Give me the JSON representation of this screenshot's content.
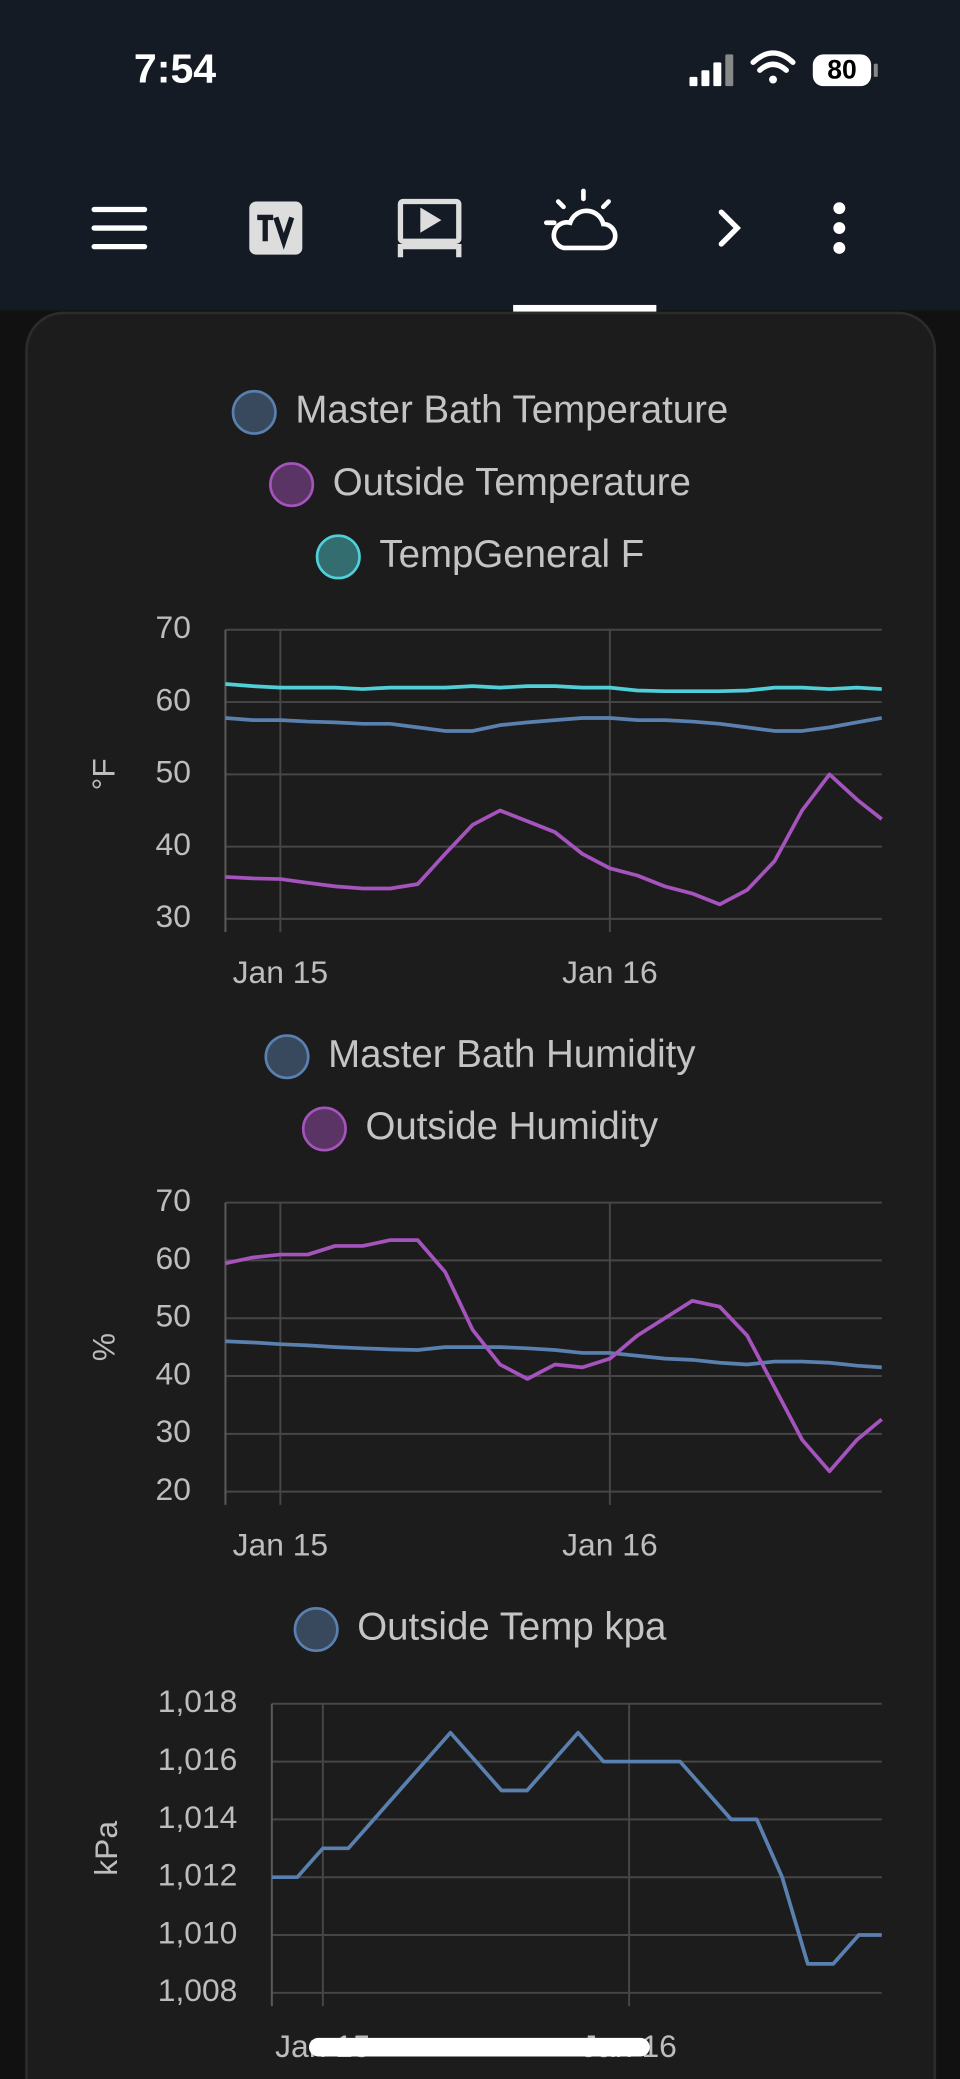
{
  "status_bar": {
    "time": "7:54",
    "battery": "80"
  },
  "chart_data": [
    {
      "type": "line",
      "y_label": "°F",
      "grid": true,
      "x": [
        -4,
        -2,
        0,
        2,
        4,
        6,
        8,
        10,
        12,
        14,
        16,
        18,
        20,
        22,
        24,
        26,
        28,
        30,
        32,
        34,
        36,
        38,
        40,
        42,
        43.8
      ],
      "xlim": [
        -4,
        43.8
      ],
      "xticks": [
        {
          "value": 0,
          "label": "Jan 15"
        },
        {
          "value": 24,
          "label": "Jan 16"
        }
      ],
      "ylim": [
        30,
        70
      ],
      "yticks": [
        30,
        40,
        50,
        60,
        70
      ],
      "series": [
        {
          "name": "Master Bath Temperature",
          "color": "#5a80b0",
          "values": [
            57.8,
            57.5,
            57.5,
            57.3,
            57.2,
            57,
            57,
            56.5,
            56,
            56,
            56.8,
            57.2,
            57.5,
            57.8,
            57.8,
            57.5,
            57.5,
            57.3,
            57,
            56.5,
            56,
            56,
            56.5,
            57.2,
            57.8
          ]
        },
        {
          "name": "Outside Temperature",
          "color": "#a553bd",
          "values": [
            35.8,
            35.6,
            35.5,
            35,
            34.5,
            34.2,
            34.2,
            34.8,
            39,
            43,
            45,
            43.5,
            42,
            39,
            37,
            36,
            34.5,
            33.5,
            32,
            34,
            38,
            45,
            50,
            46.5,
            43.8
          ]
        },
        {
          "name": "TempGeneral F",
          "color": "#4fd0d8",
          "values": [
            62.5,
            62.2,
            62,
            62,
            62,
            61.8,
            62,
            62,
            62,
            62.2,
            62,
            62.2,
            62.2,
            62,
            62,
            61.6,
            61.5,
            61.5,
            61.5,
            61.6,
            62,
            62,
            61.8,
            62,
            61.8
          ]
        }
      ]
    },
    {
      "type": "line",
      "y_label": "%",
      "grid": true,
      "x": [
        -4,
        -2,
        0,
        2,
        4,
        6,
        8,
        10,
        12,
        14,
        16,
        18,
        20,
        22,
        24,
        26,
        28,
        30,
        32,
        34,
        36,
        38,
        40,
        42,
        43.8
      ],
      "xlim": [
        -4,
        43.8
      ],
      "xticks": [
        {
          "value": 0,
          "label": "Jan 15"
        },
        {
          "value": 24,
          "label": "Jan 16"
        }
      ],
      "ylim": [
        20,
        70
      ],
      "yticks": [
        20,
        30,
        40,
        50,
        60,
        70
      ],
      "series": [
        {
          "name": "Master Bath Humidity",
          "color": "#5a80b0",
          "values": [
            46,
            45.8,
            45.5,
            45.3,
            45,
            44.8,
            44.6,
            44.5,
            45,
            45,
            45,
            44.8,
            44.5,
            44,
            44,
            43.5,
            43,
            42.8,
            42.3,
            42,
            42.5,
            42.5,
            42.3,
            41.8,
            41.5
          ]
        },
        {
          "name": "Outside Humidity",
          "color": "#a553bd",
          "values": [
            59.5,
            60.5,
            61,
            61,
            62.5,
            62.5,
            63.5,
            63.5,
            58,
            48,
            42,
            39.5,
            42,
            41.5,
            43,
            47,
            50,
            53,
            52,
            47,
            38,
            29,
            23.5,
            29,
            32.5
          ]
        }
      ]
    },
    {
      "type": "line",
      "y_label": "kPa",
      "grid": true,
      "x": [
        -4,
        -2,
        0,
        2,
        4,
        6,
        8,
        10,
        12,
        14,
        16,
        18,
        20,
        22,
        24,
        26,
        28,
        30,
        32,
        34,
        36,
        38,
        40,
        42,
        43.8
      ],
      "xlim": [
        -4,
        43.8
      ],
      "xticks": [
        {
          "value": 0,
          "label": "Jan 15"
        },
        {
          "value": 24,
          "label": "Jan 16"
        }
      ],
      "ylim": [
        1008,
        1018
      ],
      "yticks": [
        {
          "value": 1008,
          "label": "1,008"
        },
        {
          "value": 1010,
          "label": "1,010"
        },
        {
          "value": 1012,
          "label": "1,012"
        },
        {
          "value": 1014,
          "label": "1,014"
        },
        {
          "value": 1016,
          "label": "1,016"
        },
        {
          "value": 1018,
          "label": "1,018"
        }
      ],
      "series": [
        {
          "name": "Outside Temp kpa",
          "color": "#5a80b0",
          "values": [
            1012,
            1012,
            1013,
            1013,
            1014,
            1015,
            1016,
            1017,
            1016,
            1015,
            1015,
            1016,
            1017,
            1016,
            1016,
            1016,
            1016,
            1015,
            1014,
            1014,
            1012,
            1009,
            1009,
            1010,
            1010
          ]
        }
      ]
    }
  ]
}
